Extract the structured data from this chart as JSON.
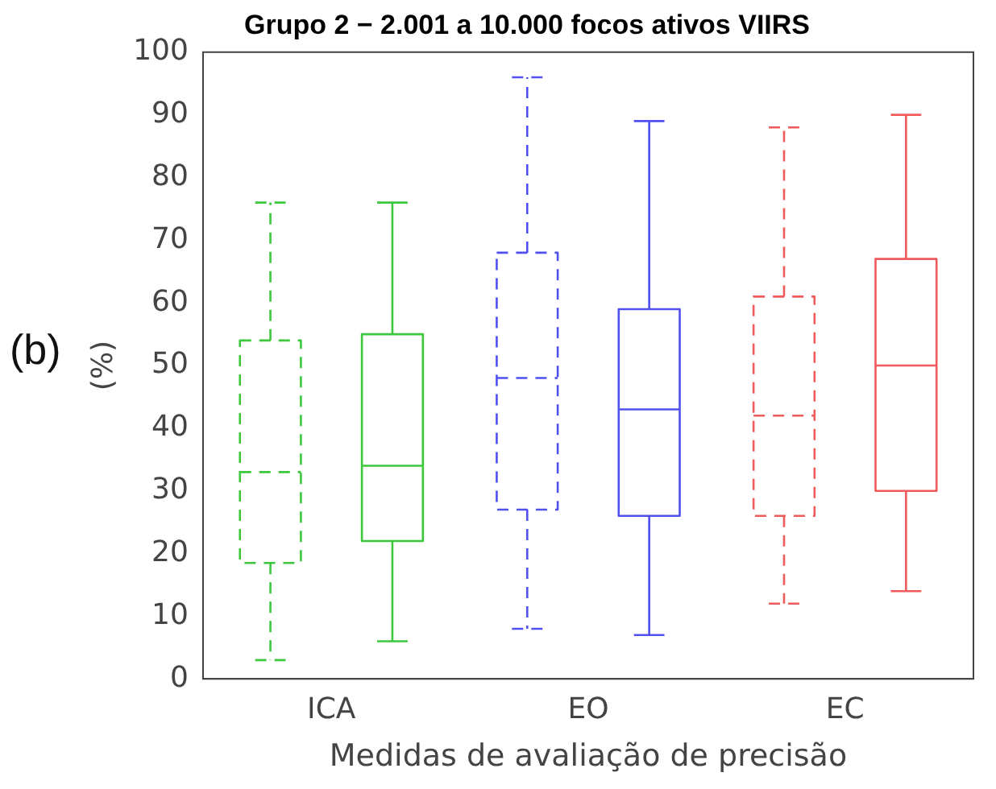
{
  "chart_data": {
    "type": "box",
    "title": "Grupo 2 − 2.001 a 10.000 focos ativos VIIRS",
    "xlabel": "Medidas de avaliação de precisão",
    "ylabel": "(%)",
    "annotations": [
      "(b)"
    ],
    "categories": [
      "ICA",
      "EO",
      "EC"
    ],
    "ylim": [
      0,
      100
    ],
    "yticks": [
      0,
      10,
      20,
      30,
      40,
      50,
      60,
      70,
      80,
      90,
      100
    ],
    "grid": false,
    "legend": false,
    "series": [
      {
        "colors": [
          "#3cc83c",
          "#5050f0",
          "#f05a5a"
        ],
        "line_style": "dashed",
        "boxes": [
          {
            "low": 3,
            "q1": 18.5,
            "median": 33,
            "q3": 54,
            "high": 76
          },
          {
            "low": 8,
            "q1": 27,
            "median": 48,
            "q3": 68,
            "high": 96
          },
          {
            "low": 12,
            "q1": 26,
            "median": 42,
            "q3": 61,
            "high": 88
          }
        ]
      },
      {
        "colors": [
          "#3cc83c",
          "#5050f0",
          "#f05a5a"
        ],
        "line_style": "solid",
        "boxes": [
          {
            "low": 6,
            "q1": 22,
            "median": 34,
            "q3": 55,
            "high": 76
          },
          {
            "low": 7,
            "q1": 26,
            "median": 43,
            "q3": 59,
            "high": 89
          },
          {
            "low": 14,
            "q1": 30,
            "median": 50,
            "q3": 67,
            "high": 90
          }
        ]
      }
    ]
  }
}
